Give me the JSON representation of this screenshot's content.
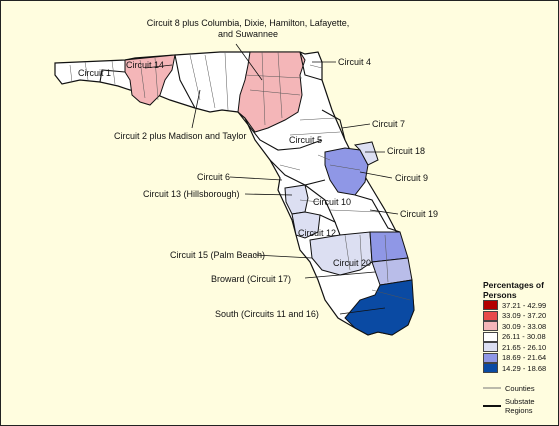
{
  "map": {
    "regions": [
      {
        "label": "Circuit 1"
      },
      {
        "label": "Circuit 14"
      },
      {
        "label": "Circuit 8 plus Columbia, Dixie, Hamilton, Lafayette, and Suwannee"
      },
      {
        "label": "Circuit 4"
      },
      {
        "label": "Circuit 2 plus Madison and Taylor"
      },
      {
        "label": "Circuit 7"
      },
      {
        "label": "Circuit 5"
      },
      {
        "label": "Circuit 18"
      },
      {
        "label": "Circuit 6"
      },
      {
        "label": "Circuit 9"
      },
      {
        "label": "Circuit 13 (Hillsborough)"
      },
      {
        "label": "Circuit 10"
      },
      {
        "label": "Circuit 19"
      },
      {
        "label": "Circuit 12"
      },
      {
        "label": "Circuit 15 (Palm Beach)"
      },
      {
        "label": "Circuit 20"
      },
      {
        "label": "Broward (Circuit 17)"
      },
      {
        "label": "South (Circuits 11 and 16)"
      }
    ]
  },
  "legend": {
    "title": "Percentages of Persons",
    "bins": [
      {
        "range": "37.21 - 42.99",
        "color": "#b30000"
      },
      {
        "range": "33.09 - 37.20",
        "color": "#e84a4a"
      },
      {
        "range": "30.09 - 33.08",
        "color": "#f4b6b8"
      },
      {
        "range": "26.11 - 30.08",
        "color": "#ffffff"
      },
      {
        "range": "21.65 - 26.10",
        "color": "#dcdff2"
      },
      {
        "range": "18.69 - 21.64",
        "color": "#8f97e6"
      },
      {
        "range": "14.29 - 18.68",
        "color": "#0a4aa3"
      }
    ],
    "counties_label": "Counties",
    "substate_label": "Substate Regions"
  }
}
